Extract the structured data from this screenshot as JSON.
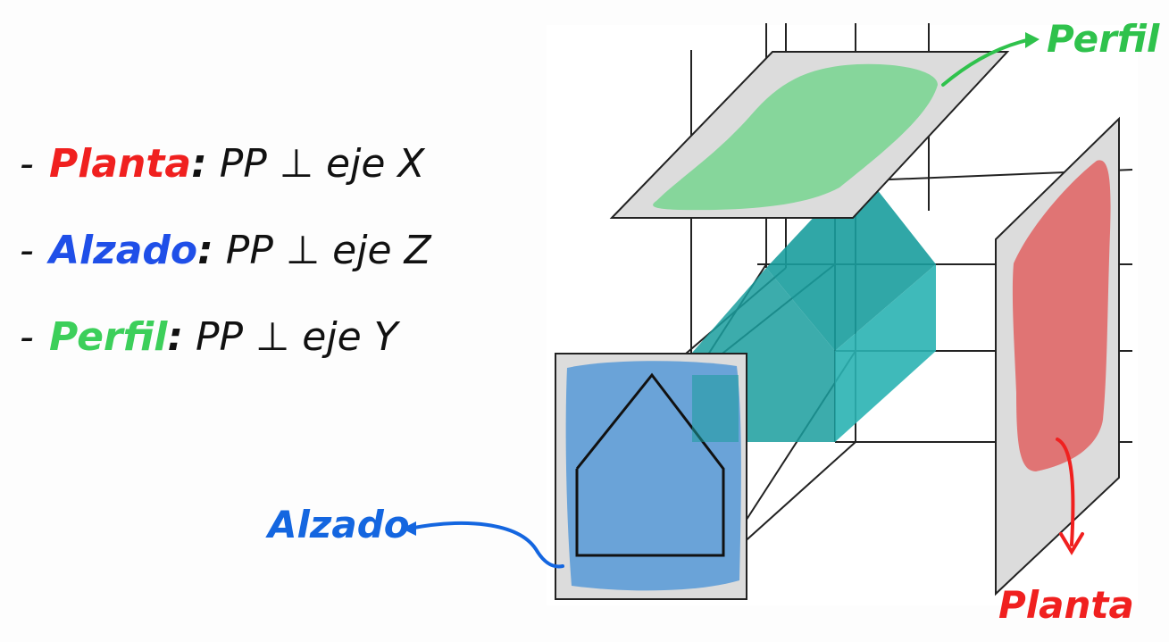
{
  "definitions": [
    {
      "term": "Planta",
      "separator": ":",
      "rule": "PP ⊥ eje X",
      "color": "#f0201f"
    },
    {
      "term": "Alzado",
      "separator": ":",
      "rule": "PP ⊥ eje Z",
      "color": "#1f4fe8"
    },
    {
      "term": "Perfil",
      "separator": ":",
      "rule": "PP ⊥ eje Y",
      "color": "#3ccf5a"
    }
  ],
  "labels": {
    "perfil": {
      "text": "Perfil",
      "color": "#2fc24c"
    },
    "alzado": {
      "text": "Alzado",
      "color": "#1466e0"
    },
    "planta": {
      "text": "Planta",
      "color": "#f0201f"
    }
  },
  "colors": {
    "plane_fill": "#dcdcdc",
    "plane_stroke": "#222222",
    "top_plane_paint": "#86d69b",
    "front_plane_paint": "#6aa3d8",
    "side_plane_paint": "#e07474",
    "solid": "#1a9d9d"
  }
}
